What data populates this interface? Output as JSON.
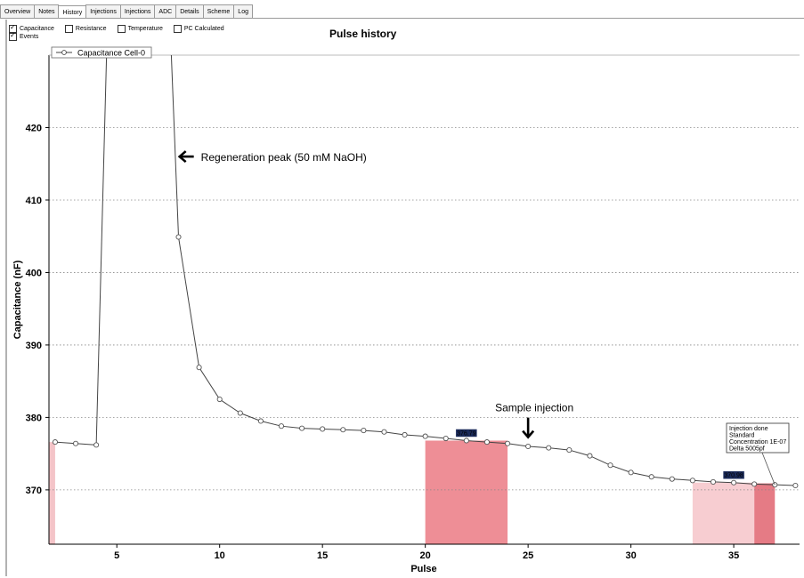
{
  "tabs": [
    {
      "label": "Overview",
      "active": false
    },
    {
      "label": "Notes",
      "active": false
    },
    {
      "label": "History",
      "active": true
    },
    {
      "label": "Injections",
      "active": false
    },
    {
      "label": "Injections",
      "active": false
    },
    {
      "label": "ADC",
      "active": false
    },
    {
      "label": "Details",
      "active": false
    },
    {
      "label": "Scheme",
      "active": false
    },
    {
      "label": "Log",
      "active": false
    }
  ],
  "checkboxes": {
    "capacitance": {
      "label": "Capacitance",
      "checked": true
    },
    "resistance": {
      "label": "Resistance",
      "checked": false
    },
    "temperature": {
      "label": "Temperature",
      "checked": false
    },
    "pc_calculated": {
      "label": "PC Calculated",
      "checked": false
    },
    "events": {
      "label": "Events",
      "checked": true
    }
  },
  "chart_data": {
    "type": "line",
    "title": "Pulse history",
    "xlabel": "Pulse",
    "ylabel": "Capacitance (nF)",
    "xlim": [
      1.7,
      38.2
    ],
    "ylim": [
      362.5,
      430
    ],
    "xticks": [
      5,
      10,
      15,
      20,
      25,
      30,
      35
    ],
    "yticks": [
      370,
      380,
      390,
      400,
      410,
      420
    ],
    "grid": true,
    "legend": "top-left",
    "series": [
      {
        "name": "Capacitance Cell-0",
        "color": "#444444",
        "x": [
          2,
          3,
          4,
          8,
          9,
          10,
          11,
          12,
          13,
          14,
          15,
          16,
          17,
          18,
          19,
          20,
          21,
          22,
          23,
          24,
          25,
          26,
          27,
          28,
          29,
          30,
          31,
          32,
          33,
          34,
          35,
          36,
          37,
          38
        ],
        "y": [
          376.6,
          376.4,
          376.2,
          404.9,
          386.9,
          382.5,
          380.6,
          379.5,
          378.8,
          378.5,
          378.4,
          378.3,
          378.2,
          378.0,
          377.6,
          377.4,
          377.1,
          376.8,
          376.6,
          376.4,
          376.0,
          375.8,
          375.5,
          374.7,
          373.4,
          372.4,
          371.8,
          371.5,
          371.3,
          371.1,
          371.0,
          370.8,
          370.7,
          370.6
        ]
      }
    ],
    "peak_segments": [
      {
        "x0": 4,
        "y0": 376.2,
        "x1": 4.5,
        "y1": 430
      },
      {
        "x0": 7.65,
        "y0": 430,
        "x1": 8,
        "y1": 404.9
      }
    ],
    "event_regions": [
      {
        "x0": 1.7,
        "x1": 2,
        "y": 376.6,
        "color": "#f4c4c8"
      },
      {
        "x0": 20,
        "x1": 24,
        "y": 376.8,
        "color": "#ee8e96"
      },
      {
        "x0": 33,
        "x1": 36,
        "y": 371.0,
        "color": "#f7cdd1"
      },
      {
        "x0": 36,
        "x1": 37,
        "y": 370.9,
        "color": "#e57b85"
      }
    ],
    "markers": [
      {
        "x": 22,
        "y": 376.8,
        "label": "376.79"
      },
      {
        "x": 35,
        "y": 371.0,
        "label": "370.98"
      }
    ],
    "annotations": [
      {
        "text": "Regeneration peak  (50 mM  NaOH)",
        "x": 8.05,
        "y": 416,
        "arrow": "left"
      },
      {
        "text": "Sample injection",
        "x": 25,
        "y": 378.5,
        "arrow": "down"
      }
    ],
    "injection_note": {
      "lines": [
        "Injection done",
        "Standard",
        "Concentration 1E-07",
        "Delta 5005pf"
      ],
      "x": 37,
      "y": 370.7
    }
  }
}
